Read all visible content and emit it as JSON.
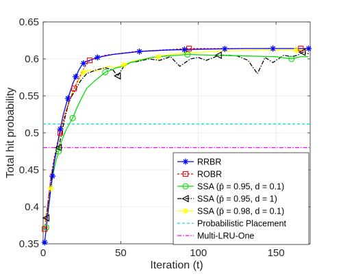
{
  "chart_data": {
    "type": "line",
    "title": "",
    "xlabel": "Iteration (t)",
    "ylabel": "Total hit probability",
    "xlim": [
      0,
      172
    ],
    "ylim": [
      0.35,
      0.65
    ],
    "x_ticks": [
      0,
      50,
      100,
      150
    ],
    "x_tick_labels": [
      "0",
      "50",
      "100",
      "150"
    ],
    "y_ticks": [
      0.35,
      0.4,
      0.45,
      0.5,
      0.55,
      0.6,
      0.65
    ],
    "y_tick_labels": [
      "0.35",
      "0.4",
      "0.45",
      "0.5",
      "0.55",
      "0.6",
      "0.65"
    ],
    "grid": true,
    "legend_position": "bottom-right",
    "series": [
      {
        "name": "RRBR",
        "color": "#0000ff",
        "dash": "",
        "marker": "star",
        "marker_x": [
          1,
          6,
          11,
          16,
          21,
          26,
          35,
          62,
          91,
          117,
          148,
          171
        ],
        "x": [
          1,
          3,
          5,
          7,
          9,
          11,
          13,
          15,
          17,
          19,
          21,
          23,
          25,
          27,
          30,
          35,
          45,
          62,
          80,
          100,
          130,
          171
        ],
        "y": [
          0.352,
          0.39,
          0.425,
          0.458,
          0.482,
          0.505,
          0.525,
          0.54,
          0.553,
          0.566,
          0.576,
          0.585,
          0.592,
          0.596,
          0.598,
          0.602,
          0.606,
          0.61,
          0.612,
          0.613,
          0.614,
          0.614
        ]
      },
      {
        "name": "ROBR",
        "color": "#ff0000",
        "dash": "3,2",
        "marker": "square",
        "marker_x": [
          1,
          11,
          20,
          30,
          94,
          166
        ],
        "x": [
          1,
          3,
          5,
          7,
          9,
          11,
          14,
          17,
          20,
          24,
          27,
          30,
          40,
          60,
          94,
          120,
          166,
          171
        ],
        "y": [
          0.37,
          0.405,
          0.44,
          0.465,
          0.485,
          0.5,
          0.525,
          0.543,
          0.56,
          0.578,
          0.59,
          0.598,
          0.605,
          0.61,
          0.614,
          0.614,
          0.614,
          0.614
        ]
      },
      {
        "name": "SSA (p̄ = 0.95, d = 0.1)",
        "color": "#00dd00",
        "dash": "",
        "marker": "circle",
        "marker_x": [
          2,
          10,
          19,
          40,
          93,
          160
        ],
        "x": [
          1,
          2,
          4,
          6,
          8,
          10,
          12,
          15,
          19,
          22,
          25,
          28,
          32,
          36,
          40,
          44,
          47,
          52,
          56,
          62,
          70,
          80,
          93,
          110,
          130,
          150,
          160,
          166,
          171
        ],
        "y": [
          0.37,
          0.372,
          0.41,
          0.44,
          0.46,
          0.475,
          0.49,
          0.505,
          0.52,
          0.535,
          0.548,
          0.56,
          0.568,
          0.575,
          0.582,
          0.585,
          0.588,
          0.59,
          0.595,
          0.598,
          0.602,
          0.604,
          0.606,
          0.605,
          0.604,
          0.603,
          0.6,
          0.603,
          0.603
        ]
      },
      {
        "name": "SSA (p̄ = 0.95, d = 1)",
        "color": "#000000",
        "dash": "6,2,1.5,2",
        "marker": "triangle-left",
        "marker_x": [
          2,
          10,
          48,
          113,
          167
        ],
        "x": [
          1,
          2,
          4,
          6,
          8,
          10,
          12,
          14,
          17,
          20,
          24,
          28,
          34,
          40,
          45,
          48,
          52,
          56,
          62,
          68,
          75,
          82,
          88,
          95,
          100,
          105,
          110,
          113,
          118,
          125,
          132,
          138,
          143,
          148,
          155,
          160,
          164,
          167,
          171
        ],
        "y": [
          0.384,
          0.385,
          0.42,
          0.45,
          0.47,
          0.48,
          0.5,
          0.52,
          0.545,
          0.555,
          0.57,
          0.58,
          0.585,
          0.588,
          0.585,
          0.577,
          0.59,
          0.595,
          0.597,
          0.6,
          0.598,
          0.603,
          0.59,
          0.6,
          0.602,
          0.598,
          0.602,
          0.605,
          0.605,
          0.604,
          0.598,
          0.58,
          0.602,
          0.595,
          0.605,
          0.603,
          0.605,
          0.609,
          0.607
        ]
      },
      {
        "name": "SSA (p̄ = 0.98, d = 0.1)",
        "color": "#ffff00",
        "dash": "",
        "marker": "star",
        "marker_x": [
          5,
          26,
          52,
          74,
          163
        ],
        "x": [
          1,
          3,
          5,
          7,
          9,
          11,
          14,
          17,
          20,
          23,
          26,
          30,
          34,
          38,
          42,
          46,
          52,
          58,
          65,
          74,
          85,
          100,
          120,
          140,
          163,
          171
        ],
        "y": [
          0.38,
          0.4,
          0.425,
          0.46,
          0.48,
          0.5,
          0.525,
          0.545,
          0.56,
          0.572,
          0.582,
          0.585,
          0.583,
          0.587,
          0.59,
          0.588,
          0.592,
          0.597,
          0.6,
          0.603,
          0.607,
          0.609,
          0.611,
          0.612,
          0.612,
          0.613
        ]
      },
      {
        "name": "Probabilistic Placement",
        "color": "#00e0e0",
        "dash": "4,3",
        "marker": "none",
        "marker_x": [],
        "x": [
          0,
          172
        ],
        "y": [
          0.512,
          0.512
        ]
      },
      {
        "name": "Multi-LRU-One",
        "color": "#ff00ff",
        "dash": "6,2,1.5,2",
        "marker": "none",
        "marker_x": [],
        "x": [
          0,
          172
        ],
        "y": [
          0.48,
          0.48
        ]
      }
    ]
  }
}
